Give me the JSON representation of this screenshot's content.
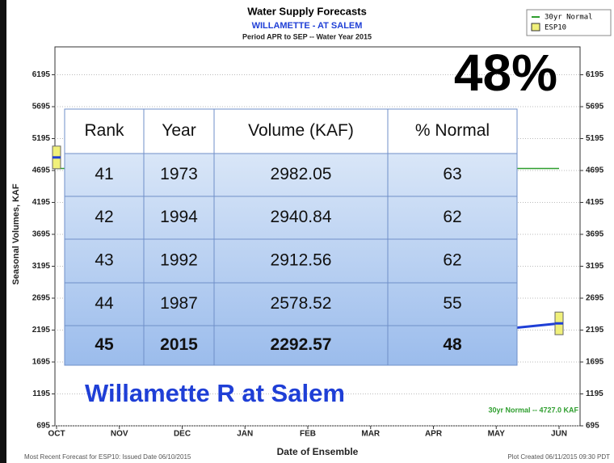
{
  "chart_data": {
    "type": "box",
    "title": "Water Supply Forecasts",
    "subtitle": "WILLAMETTE - AT SALEM",
    "period": "Period  APR to SEP  -- Water Year 2015",
    "ylabel": "Seasonal Volumes, KAF",
    "xlabel": "Date of Ensemble",
    "categories": [
      "OCT",
      "NOV",
      "DEC",
      "JAN",
      "FEB",
      "MAR",
      "APR",
      "MAY",
      "JUN"
    ],
    "ylim": [
      695,
      6632
    ],
    "yticks": [
      695,
      1195,
      1695,
      2195,
      2695,
      3195,
      3695,
      4195,
      4695,
      5195,
      5695,
      6195
    ],
    "grid": true,
    "series": [
      {
        "name": "30yr Normal",
        "color": "#2e9e2e",
        "values": [
          4727,
          4727,
          4727,
          4727,
          4727,
          4727,
          4727,
          4727,
          4727
        ]
      },
      {
        "name": "ESP10",
        "color": "#1f3fd6",
        "box_color": "#f0f07a",
        "values": [
          4900,
          null,
          null,
          null,
          null,
          null,
          null,
          2200,
          2300
        ]
      }
    ],
    "annotation": "30yr Normal -- 4727.0 KAF",
    "footer_left": "Most Recent Forecast for ESP10: Issued Date 06/10/2015",
    "footer_right": "Plot Created 06/11/2015 09:30 PDT"
  },
  "headline": "48%",
  "caption": "Willamette R at Salem",
  "table": {
    "header": [
      "Rank",
      "Year",
      "Volume (KAF)",
      "% Normal"
    ],
    "rows": [
      [
        41,
        1973,
        2982.05,
        63
      ],
      [
        42,
        1994,
        2940.84,
        62
      ],
      [
        43,
        1992,
        2912.56,
        62
      ],
      [
        44,
        1987,
        2578.52,
        55
      ],
      [
        45,
        2015,
        2292.57,
        48
      ]
    ]
  }
}
